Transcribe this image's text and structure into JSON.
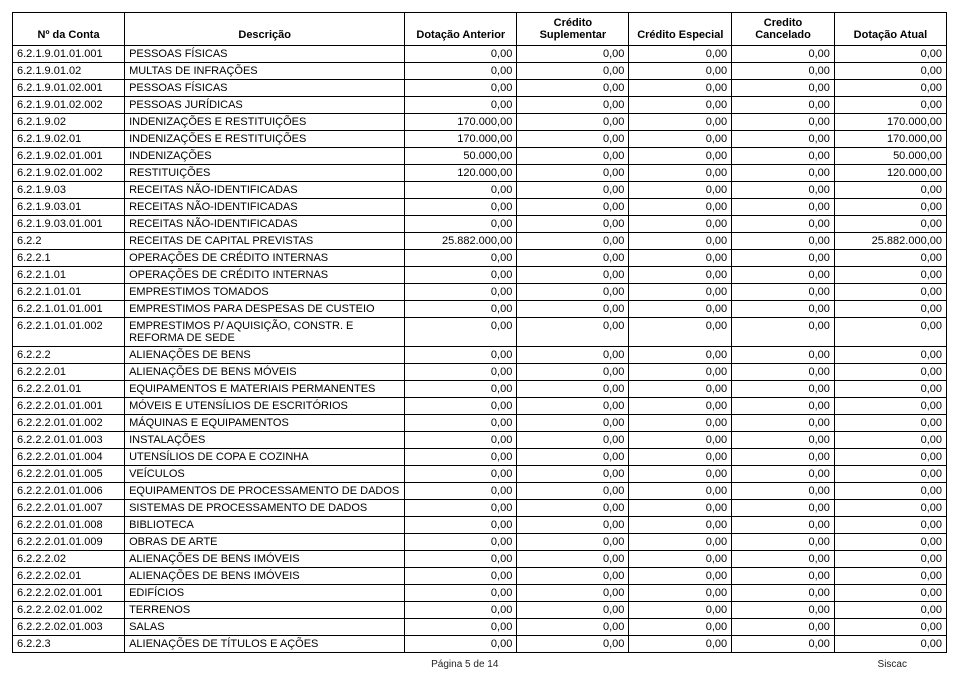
{
  "columns": [
    {
      "key": "conta",
      "label": "Nº da Conta",
      "width": "12%",
      "class": "code"
    },
    {
      "key": "desc",
      "label": "Descrição",
      "width": "30%",
      "class": ""
    },
    {
      "key": "ant",
      "label": "Dotação Anterior",
      "width": "12%",
      "class": "num"
    },
    {
      "key": "sup",
      "label": "Crédito Suplementar",
      "width": "12%",
      "class": "num"
    },
    {
      "key": "esp",
      "label": "Crédito Especial",
      "width": "11%",
      "class": "num"
    },
    {
      "key": "can",
      "label": "Credito Cancelado",
      "width": "11%",
      "class": "num"
    },
    {
      "key": "atu",
      "label": "Dotação Atual",
      "width": "12%",
      "class": "num"
    }
  ],
  "rows": [
    {
      "conta": "6.2.1.9.01.01.001",
      "desc": "PESSOAS FÍSICAS",
      "ant": "0,00",
      "sup": "0,00",
      "esp": "0,00",
      "can": "0,00",
      "atu": "0,00"
    },
    {
      "conta": "6.2.1.9.01.02",
      "desc": "MULTAS DE INFRAÇÕES",
      "ant": "0,00",
      "sup": "0,00",
      "esp": "0,00",
      "can": "0,00",
      "atu": "0,00"
    },
    {
      "conta": "6.2.1.9.01.02.001",
      "desc": "PESSOAS FÍSICAS",
      "ant": "0,00",
      "sup": "0,00",
      "esp": "0,00",
      "can": "0,00",
      "atu": "0,00"
    },
    {
      "conta": "6.2.1.9.01.02.002",
      "desc": "PESSOAS JURÍDICAS",
      "ant": "0,00",
      "sup": "0,00",
      "esp": "0,00",
      "can": "0,00",
      "atu": "0,00"
    },
    {
      "conta": "6.2.1.9.02",
      "desc": "INDENIZAÇÕES E RESTITUIÇÕES",
      "ant": "170.000,00",
      "sup": "0,00",
      "esp": "0,00",
      "can": "0,00",
      "atu": "170.000,00"
    },
    {
      "conta": "6.2.1.9.02.01",
      "desc": "INDENIZAÇÕES E RESTITUIÇÕES",
      "ant": "170.000,00",
      "sup": "0,00",
      "esp": "0,00",
      "can": "0,00",
      "atu": "170.000,00"
    },
    {
      "conta": "6.2.1.9.02.01.001",
      "desc": "INDENIZAÇÕES",
      "ant": "50.000,00",
      "sup": "0,00",
      "esp": "0,00",
      "can": "0,00",
      "atu": "50.000,00"
    },
    {
      "conta": "6.2.1.9.02.01.002",
      "desc": "RESTITUIÇÕES",
      "ant": "120.000,00",
      "sup": "0,00",
      "esp": "0,00",
      "can": "0,00",
      "atu": "120.000,00"
    },
    {
      "conta": "6.2.1.9.03",
      "desc": "RECEITAS NÃO-IDENTIFICADAS",
      "ant": "0,00",
      "sup": "0,00",
      "esp": "0,00",
      "can": "0,00",
      "atu": "0,00"
    },
    {
      "conta": "6.2.1.9.03.01",
      "desc": "RECEITAS NÃO-IDENTIFICADAS",
      "ant": "0,00",
      "sup": "0,00",
      "esp": "0,00",
      "can": "0,00",
      "atu": "0,00"
    },
    {
      "conta": "6.2.1.9.03.01.001",
      "desc": "RECEITAS NÃO-IDENTIFICADAS",
      "ant": "0,00",
      "sup": "0,00",
      "esp": "0,00",
      "can": "0,00",
      "atu": "0,00"
    },
    {
      "conta": "6.2.2",
      "desc": "RECEITAS DE CAPITAL PREVISTAS",
      "ant": "25.882.000,00",
      "sup": "0,00",
      "esp": "0,00",
      "can": "0,00",
      "atu": "25.882.000,00"
    },
    {
      "conta": "6.2.2.1",
      "desc": "OPERAÇÕES DE CRÉDITO INTERNAS",
      "ant": "0,00",
      "sup": "0,00",
      "esp": "0,00",
      "can": "0,00",
      "atu": "0,00"
    },
    {
      "conta": "6.2.2.1.01",
      "desc": "OPERAÇÕES DE CRÉDITO INTERNAS",
      "ant": "0,00",
      "sup": "0,00",
      "esp": "0,00",
      "can": "0,00",
      "atu": "0,00"
    },
    {
      "conta": "6.2.2.1.01.01",
      "desc": "EMPRESTIMOS TOMADOS",
      "ant": "0,00",
      "sup": "0,00",
      "esp": "0,00",
      "can": "0,00",
      "atu": "0,00"
    },
    {
      "conta": "6.2.2.1.01.01.001",
      "desc": "EMPRESTIMOS PARA DESPESAS DE CUSTEIO",
      "ant": "0,00",
      "sup": "0,00",
      "esp": "0,00",
      "can": "0,00",
      "atu": "0,00"
    },
    {
      "conta": "6.2.2.1.01.01.002",
      "desc": "EMPRESTIMOS P/ AQUISIÇÃO, CONSTR. E REFORMA DE SEDE",
      "ant": "0,00",
      "sup": "0,00",
      "esp": "0,00",
      "can": "0,00",
      "atu": "0,00"
    },
    {
      "conta": "6.2.2.2",
      "desc": "ALIENAÇÕES DE BENS",
      "ant": "0,00",
      "sup": "0,00",
      "esp": "0,00",
      "can": "0,00",
      "atu": "0,00"
    },
    {
      "conta": "6.2.2.2.01",
      "desc": "ALIENAÇÕES DE BENS MÓVEIS",
      "ant": "0,00",
      "sup": "0,00",
      "esp": "0,00",
      "can": "0,00",
      "atu": "0,00"
    },
    {
      "conta": "6.2.2.2.01.01",
      "desc": "EQUIPAMENTOS E MATERIAIS PERMANENTES",
      "ant": "0,00",
      "sup": "0,00",
      "esp": "0,00",
      "can": "0,00",
      "atu": "0,00"
    },
    {
      "conta": "6.2.2.2.01.01.001",
      "desc": "MÓVEIS E UTENSÍLIOS DE ESCRITÓRIOS",
      "ant": "0,00",
      "sup": "0,00",
      "esp": "0,00",
      "can": "0,00",
      "atu": "0,00"
    },
    {
      "conta": "6.2.2.2.01.01.002",
      "desc": "MÁQUINAS E EQUIPAMENTOS",
      "ant": "0,00",
      "sup": "0,00",
      "esp": "0,00",
      "can": "0,00",
      "atu": "0,00"
    },
    {
      "conta": "6.2.2.2.01.01.003",
      "desc": "INSTALAÇÕES",
      "ant": "0,00",
      "sup": "0,00",
      "esp": "0,00",
      "can": "0,00",
      "atu": "0,00"
    },
    {
      "conta": "6.2.2.2.01.01.004",
      "desc": "UTENSÍLIOS DE COPA E COZINHA",
      "ant": "0,00",
      "sup": "0,00",
      "esp": "0,00",
      "can": "0,00",
      "atu": "0,00"
    },
    {
      "conta": "6.2.2.2.01.01.005",
      "desc": "VEÍCULOS",
      "ant": "0,00",
      "sup": "0,00",
      "esp": "0,00",
      "can": "0,00",
      "atu": "0,00"
    },
    {
      "conta": "6.2.2.2.01.01.006",
      "desc": "EQUIPAMENTOS DE PROCESSAMENTO DE DADOS",
      "ant": "0,00",
      "sup": "0,00",
      "esp": "0,00",
      "can": "0,00",
      "atu": "0,00"
    },
    {
      "conta": "6.2.2.2.01.01.007",
      "desc": "SISTEMAS DE PROCESSAMENTO DE DADOS",
      "ant": "0,00",
      "sup": "0,00",
      "esp": "0,00",
      "can": "0,00",
      "atu": "0,00"
    },
    {
      "conta": "6.2.2.2.01.01.008",
      "desc": "BIBLIOTECA",
      "ant": "0,00",
      "sup": "0,00",
      "esp": "0,00",
      "can": "0,00",
      "atu": "0,00"
    },
    {
      "conta": "6.2.2.2.01.01.009",
      "desc": "OBRAS DE ARTE",
      "ant": "0,00",
      "sup": "0,00",
      "esp": "0,00",
      "can": "0,00",
      "atu": "0,00"
    },
    {
      "conta": "6.2.2.2.02",
      "desc": "ALIENAÇÕES DE BENS IMÓVEIS",
      "ant": "0,00",
      "sup": "0,00",
      "esp": "0,00",
      "can": "0,00",
      "atu": "0,00"
    },
    {
      "conta": "6.2.2.2.02.01",
      "desc": "ALIENAÇÕES DE BENS IMÓVEIS",
      "ant": "0,00",
      "sup": "0,00",
      "esp": "0,00",
      "can": "0,00",
      "atu": "0,00"
    },
    {
      "conta": "6.2.2.2.02.01.001",
      "desc": "EDIFÍCIOS",
      "ant": "0,00",
      "sup": "0,00",
      "esp": "0,00",
      "can": "0,00",
      "atu": "0,00"
    },
    {
      "conta": "6.2.2.2.02.01.002",
      "desc": "TERRENOS",
      "ant": "0,00",
      "sup": "0,00",
      "esp": "0,00",
      "can": "0,00",
      "atu": "0,00"
    },
    {
      "conta": "6.2.2.2.02.01.003",
      "desc": "SALAS",
      "ant": "0,00",
      "sup": "0,00",
      "esp": "0,00",
      "can": "0,00",
      "atu": "0,00"
    },
    {
      "conta": "6.2.2.3",
      "desc": "ALIENAÇÕES DE TÍTULOS E AÇÕES",
      "ant": "0,00",
      "sup": "0,00",
      "esp": "0,00",
      "can": "0,00",
      "atu": "0,00"
    }
  ],
  "footer": {
    "page": "Página 5 de 14",
    "sys": "Siscac"
  }
}
